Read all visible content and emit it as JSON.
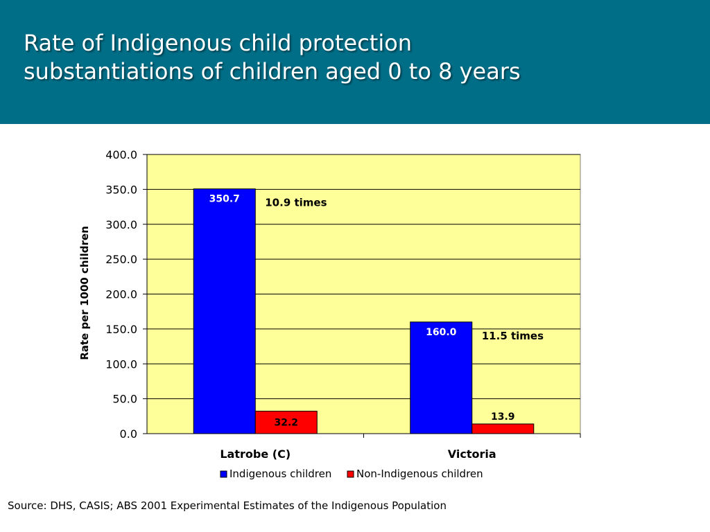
{
  "slide": {
    "title": "Rate of Indigenous child protection substantiations of children aged 0 to 8 years",
    "source": "Source: DHS, CASIS; ABS 2001 Experimental Estimates of the Indigenous Population"
  },
  "colors": {
    "header_bg": "#006e87",
    "plot_bg": "#ffff99",
    "indigenous": "#0000ff",
    "non_indigenous": "#ff0000"
  },
  "chart_data": {
    "type": "bar",
    "title": "",
    "xlabel": "",
    "ylabel": "Rate per 1000 children",
    "ylim": [
      0,
      400
    ],
    "yticks": [
      "0.0",
      "50.0",
      "100.0",
      "150.0",
      "200.0",
      "250.0",
      "300.0",
      "350.0",
      "400.0"
    ],
    "grid": true,
    "legend_position": "bottom",
    "categories": [
      "Latrobe (C)",
      "Victoria"
    ],
    "series": [
      {
        "name": "Indigenous children",
        "values": [
          350.7,
          160.0
        ],
        "labels": [
          "350.7",
          "160.0"
        ]
      },
      {
        "name": "Non-Indigenous children",
        "values": [
          32.2,
          13.9
        ],
        "labels": [
          "32.2",
          "13.9"
        ]
      }
    ],
    "annotations": [
      "10.9 times",
      "11.5 times"
    ]
  }
}
